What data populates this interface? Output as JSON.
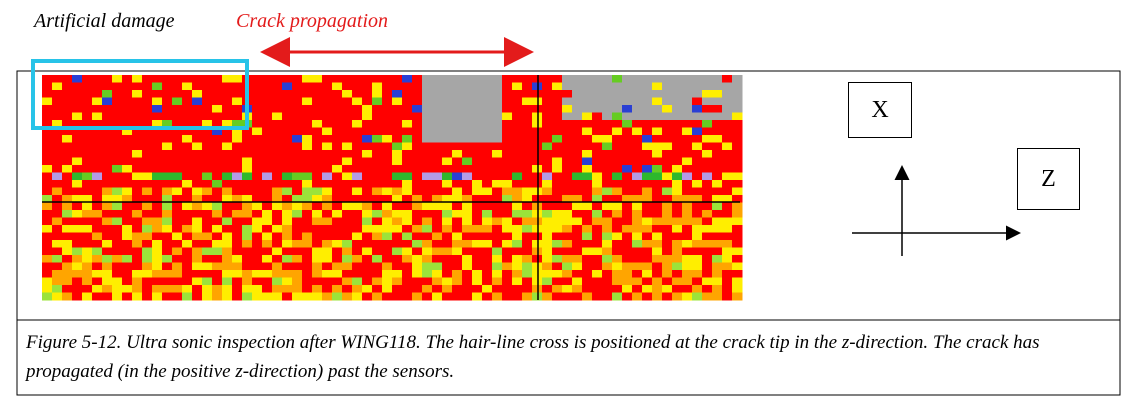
{
  "labels": {
    "artificial_damage": "Artificial damage",
    "crack_propagation": "Crack propagation"
  },
  "axes": {
    "x": "X",
    "z": "Z"
  },
  "caption": "Figure 5-12. Ultra sonic inspection after WING118. The hair-line cross is positioned at the crack tip in the z-direction. The crack has propagated (in the positive z-direction) past the sensors."
}
